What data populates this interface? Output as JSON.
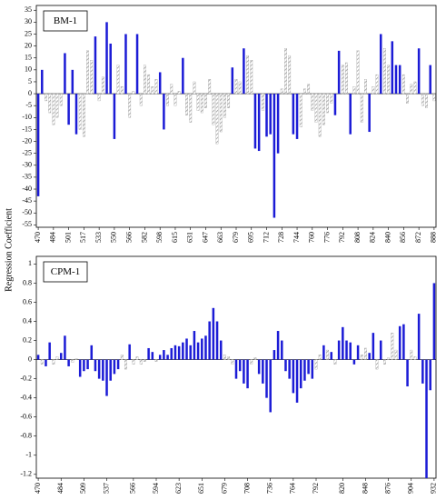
{
  "chart_data": [
    {
      "type": "bar",
      "title": "BM-1",
      "ylabel": "Regression Coefficient",
      "hatched_color": "#9a9a9a",
      "categories": [
        470,
        null,
        null,
        null,
        484,
        null,
        null,
        null,
        501,
        null,
        null,
        null,
        517,
        null,
        null,
        null,
        533,
        null,
        null,
        null,
        550,
        null,
        null,
        null,
        566,
        null,
        null,
        null,
        582,
        null,
        null,
        null,
        598,
        null,
        null,
        null,
        615,
        null,
        null,
        null,
        631,
        null,
        null,
        null,
        647,
        null,
        null,
        null,
        663,
        null,
        null,
        null,
        679,
        null,
        null,
        null,
        695,
        null,
        null,
        null,
        712,
        null,
        null,
        null,
        728,
        null,
        null,
        null,
        744,
        null,
        null,
        null,
        760,
        null,
        null,
        null,
        776,
        null,
        null,
        null,
        792,
        null,
        null,
        null,
        808,
        null,
        null,
        null,
        824,
        null,
        null,
        null,
        840,
        null,
        null,
        null,
        856,
        null,
        null,
        null,
        872,
        null,
        null,
        null,
        888
      ],
      "values": [
        -43,
        10,
        -3,
        -8,
        -13,
        -10,
        -5,
        17,
        -13,
        10,
        -17,
        -15,
        -18,
        18,
        14,
        24,
        -3,
        7,
        30,
        21,
        -19,
        12,
        3,
        25,
        -10,
        1,
        25,
        -5,
        12,
        8,
        3,
        6,
        9,
        -15,
        -5,
        4,
        -5,
        1,
        15,
        -9,
        -12,
        5,
        -7,
        -8,
        -6,
        6,
        -13,
        -21,
        -16,
        -10,
        -6,
        11,
        6,
        5,
        19,
        16,
        14,
        -23,
        -24,
        -7,
        -18,
        -17,
        -52,
        -25,
        2,
        19,
        16,
        -17,
        -19,
        -14,
        2,
        4,
        -7,
        -12,
        -18,
        -13,
        -8,
        -4,
        -9,
        18,
        12,
        13,
        -17,
        3,
        18,
        -12,
        6,
        -16,
        3,
        8,
        25,
        19,
        12,
        22,
        12,
        12,
        8,
        -4,
        4,
        5,
        19,
        -5,
        -6,
        12,
        -3
      ],
      "colors": [
        "#1c1cd6",
        "#1c1cd6",
        "#9a9a9a",
        "#9a9a9a",
        "#9a9a9a",
        "#9a9a9a",
        "#9a9a9a",
        "#1c1cd6",
        "#1c1cd6",
        "#1c1cd6",
        "#1c1cd6",
        "#9a9a9a",
        "#9a9a9a",
        "#9a9a9a",
        "#9a9a9a",
        "#1c1cd6",
        "#9a9a9a",
        "#9a9a9a",
        "#1c1cd6",
        "#1c1cd6",
        "#1c1cd6",
        "#9a9a9a",
        "#9a9a9a",
        "#1c1cd6",
        "#9a9a9a",
        "#9a9a9a",
        "#1c1cd6",
        "#9a9a9a",
        "#9a9a9a",
        "#9a9a9a",
        "#9a9a9a",
        "#9a9a9a",
        "#1c1cd6",
        "#1c1cd6",
        "#9a9a9a",
        "#9a9a9a",
        "#9a9a9a",
        "#9a9a9a",
        "#1c1cd6",
        "#9a9a9a",
        "#9a9a9a",
        "#9a9a9a",
        "#9a9a9a",
        "#9a9a9a",
        "#9a9a9a",
        "#9a9a9a",
        "#9a9a9a",
        "#9a9a9a",
        "#9a9a9a",
        "#9a9a9a",
        "#9a9a9a",
        "#1c1cd6",
        "#9a9a9a",
        "#9a9a9a",
        "#1c1cd6",
        "#9a9a9a",
        "#9a9a9a",
        "#1c1cd6",
        "#1c1cd6",
        "#9a9a9a",
        "#1c1cd6",
        "#1c1cd6",
        "#1c1cd6",
        "#1c1cd6",
        "#9a9a9a",
        "#9a9a9a",
        "#9a9a9a",
        "#1c1cd6",
        "#1c1cd6",
        "#9a9a9a",
        "#9a9a9a",
        "#9a9a9a",
        "#9a9a9a",
        "#9a9a9a",
        "#9a9a9a",
        "#9a9a9a",
        "#9a9a9a",
        "#9a9a9a",
        "#1c1cd6",
        "#1c1cd6",
        "#9a9a9a",
        "#9a9a9a",
        "#1c1cd6",
        "#9a9a9a",
        "#9a9a9a",
        "#9a9a9a",
        "#9a9a9a",
        "#1c1cd6",
        "#9a9a9a",
        "#9a9a9a",
        "#1c1cd6",
        "#9a9a9a",
        "#9a9a9a",
        "#1c1cd6",
        "#1c1cd6",
        "#1c1cd6",
        "#9a9a9a",
        "#9a9a9a",
        "#9a9a9a",
        "#9a9a9a",
        "#1c1cd6",
        "#9a9a9a",
        "#9a9a9a",
        "#1c1cd6",
        "#9a9a9a"
      ],
      "ylim": [
        -56,
        37
      ],
      "yticks": [
        -55,
        -50,
        -45,
        -40,
        -35,
        -30,
        -25,
        -20,
        -15,
        -10,
        -5,
        0,
        5,
        10,
        15,
        20,
        25,
        30,
        35
      ]
    },
    {
      "type": "bar",
      "title": "CPM-1",
      "hatched_color": "#9a9a9a",
      "categories": [
        470,
        null,
        null,
        null,
        null,
        null,
        484,
        null,
        null,
        null,
        null,
        null,
        509,
        null,
        null,
        null,
        null,
        null,
        537,
        null,
        null,
        null,
        null,
        null,
        null,
        566,
        null,
        null,
        null,
        null,
        null,
        594,
        null,
        null,
        null,
        null,
        null,
        623,
        null,
        null,
        null,
        null,
        null,
        651,
        null,
        null,
        null,
        null,
        null,
        679,
        null,
        null,
        null,
        null,
        null,
        708,
        null,
        null,
        null,
        null,
        null,
        736,
        null,
        null,
        null,
        null,
        null,
        764,
        null,
        null,
        null,
        null,
        null,
        792,
        null,
        null,
        null,
        null,
        null,
        null,
        820,
        null,
        null,
        null,
        null,
        null,
        848,
        null,
        null,
        null,
        null,
        null,
        876,
        null,
        null,
        null,
        null,
        null,
        904,
        null,
        null,
        null,
        null,
        null,
        932
      ],
      "values": [
        0.05,
        -0.05,
        -0.07,
        0.18,
        -0.05,
        0.03,
        0.07,
        0.25,
        -0.07,
        -0.03,
        0.01,
        -0.18,
        -0.12,
        -0.1,
        0.15,
        -0.12,
        -0.2,
        -0.22,
        -0.38,
        -0.22,
        -0.15,
        -0.1,
        0.05,
        -0.1,
        0.16,
        -0.05,
        0.03,
        -0.05,
        -0.02,
        0.12,
        0.08,
        -0.02,
        0.05,
        0.1,
        0.05,
        0.12,
        0.15,
        0.14,
        0.18,
        0.22,
        0.15,
        0.3,
        0.18,
        0.22,
        0.25,
        0.4,
        0.54,
        0.4,
        0.2,
        0.05,
        0.03,
        -0.05,
        -0.2,
        -0.12,
        -0.25,
        -0.3,
        -0.05,
        0.02,
        -0.15,
        -0.25,
        -0.4,
        -0.55,
        0.1,
        0.3,
        0.2,
        -0.12,
        -0.2,
        -0.35,
        -0.45,
        -0.3,
        -0.22,
        -0.15,
        -0.2,
        -0.1,
        0.05,
        0.15,
        0.1,
        0.08,
        -0.05,
        0.2,
        0.34,
        0.2,
        0.18,
        -0.05,
        0.15,
        0.05,
        0.12,
        0.07,
        0.28,
        -0.1,
        0.2,
        -0.05,
        0.02,
        0.28,
        0.1,
        0.35,
        0.37,
        -0.28,
        0.1,
        0.03,
        0.48,
        -0.25,
        -1.24,
        -0.32,
        0.8
      ],
      "colors": [
        "#1c1cd6",
        "#9a9a9a",
        "#1c1cd6",
        "#1c1cd6",
        "#9a9a9a",
        "#9a9a9a",
        "#1c1cd6",
        "#1c1cd6",
        "#1c1cd6",
        "#9a9a9a",
        "#9a9a9a",
        "#1c1cd6",
        "#1c1cd6",
        "#1c1cd6",
        "#1c1cd6",
        "#1c1cd6",
        "#1c1cd6",
        "#1c1cd6",
        "#1c1cd6",
        "#1c1cd6",
        "#1c1cd6",
        "#1c1cd6",
        "#9a9a9a",
        "#9a9a9a",
        "#1c1cd6",
        "#9a9a9a",
        "#9a9a9a",
        "#9a9a9a",
        "#9a9a9a",
        "#1c1cd6",
        "#1c1cd6",
        "#9a9a9a",
        "#1c1cd6",
        "#1c1cd6",
        "#1c1cd6",
        "#1c1cd6",
        "#1c1cd6",
        "#1c1cd6",
        "#1c1cd6",
        "#1c1cd6",
        "#1c1cd6",
        "#1c1cd6",
        "#1c1cd6",
        "#1c1cd6",
        "#1c1cd6",
        "#1c1cd6",
        "#1c1cd6",
        "#1c1cd6",
        "#1c1cd6",
        "#9a9a9a",
        "#9a9a9a",
        "#9a9a9a",
        "#1c1cd6",
        "#1c1cd6",
        "#1c1cd6",
        "#1c1cd6",
        "#9a9a9a",
        "#9a9a9a",
        "#1c1cd6",
        "#1c1cd6",
        "#1c1cd6",
        "#1c1cd6",
        "#1c1cd6",
        "#1c1cd6",
        "#1c1cd6",
        "#1c1cd6",
        "#1c1cd6",
        "#1c1cd6",
        "#1c1cd6",
        "#1c1cd6",
        "#1c1cd6",
        "#1c1cd6",
        "#1c1cd6",
        "#9a9a9a",
        "#9a9a9a",
        "#1c1cd6",
        "#9a9a9a",
        "#1c1cd6",
        "#9a9a9a",
        "#1c1cd6",
        "#1c1cd6",
        "#1c1cd6",
        "#1c1cd6",
        "#1c1cd6",
        "#1c1cd6",
        "#9a9a9a",
        "#9a9a9a",
        "#1c1cd6",
        "#1c1cd6",
        "#9a9a9a",
        "#1c1cd6",
        "#9a9a9a",
        "#9a9a9a",
        "#9a9a9a",
        "#9a9a9a",
        "#1c1cd6",
        "#1c1cd6",
        "#1c1cd6",
        "#9a9a9a",
        "#9a9a9a",
        "#1c1cd6",
        "#1c1cd6",
        "#1c1cd6",
        "#1c1cd6",
        "#1c1cd6"
      ],
      "ylim": [
        -1.24,
        1.08
      ],
      "yticks": [
        -1.2,
        -1,
        -0.8,
        -0.6,
        -0.4,
        -0.2,
        0,
        0.2,
        0.4,
        0.6,
        0.8,
        1
      ]
    }
  ]
}
